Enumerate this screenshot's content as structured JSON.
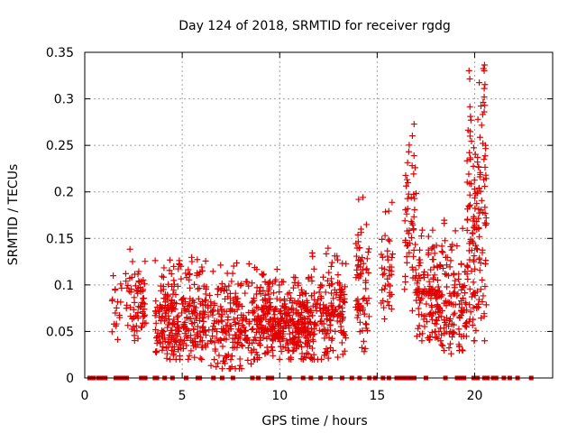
{
  "chart_data": {
    "type": "scatter",
    "title": "Day 124 of 2018, SRMTID for receiver rgdg",
    "xlabel": "GPS time / hours",
    "ylabel": "SRMTID / TECUs",
    "xlim": [
      0,
      24
    ],
    "ylim": [
      0,
      0.35
    ],
    "xticks": [
      0,
      5,
      10,
      15,
      20
    ],
    "yticks": [
      0,
      0.05,
      0.1,
      0.15,
      0.2,
      0.25,
      0.3,
      0.35
    ],
    "xtick_labels": [
      "0",
      "5",
      "10",
      "15",
      "20"
    ],
    "ytick_labels": [
      "0",
      "0.05",
      "0.1",
      "0.15",
      "0.2",
      "0.25",
      "0.3",
      "0.35"
    ],
    "grid": true,
    "marker": "+",
    "color": "#e00000",
    "series": [
      {
        "name": "SRMTID",
        "clusters": [
          {
            "x_range": [
              1.4,
              2.1
            ],
            "y_range": [
              0.04,
              0.14
            ],
            "n": 18
          },
          {
            "x_range": [
              2.1,
              3.3
            ],
            "y_range": [
              0.04,
              0.14
            ],
            "n": 70
          },
          {
            "x_range": [
              3.6,
              6.2
            ],
            "y_range": [
              0.02,
              0.13
            ],
            "n": 280
          },
          {
            "x_range": [
              6.2,
              8.6
            ],
            "y_range": [
              0.01,
              0.125
            ],
            "n": 200
          },
          {
            "x_range": [
              8.6,
              9.9
            ],
            "y_range": [
              0.02,
              0.12
            ],
            "n": 160
          },
          {
            "x_range": [
              9.9,
              11.6
            ],
            "y_range": [
              0.02,
              0.11
            ],
            "n": 220
          },
          {
            "x_range": [
              11.6,
              13.4
            ],
            "y_range": [
              0.02,
              0.14
            ],
            "n": 170
          },
          {
            "x_range": [
              13.9,
              14.6
            ],
            "y_range": [
              0.02,
              0.2
            ],
            "n": 70
          },
          {
            "x_range": [
              15.2,
              15.8
            ],
            "y_range": [
              0.06,
              0.19
            ],
            "n": 40
          },
          {
            "x_range": [
              16.4,
              17.0
            ],
            "y_range": [
              0.07,
              0.28
            ],
            "n": 55
          },
          {
            "x_range": [
              17.0,
              18.3
            ],
            "y_range": [
              0.04,
              0.16
            ],
            "n": 140
          },
          {
            "x_range": [
              18.3,
              19.6
            ],
            "y_range": [
              0.02,
              0.17
            ],
            "n": 120
          },
          {
            "x_range": [
              19.6,
              20.6
            ],
            "y_range": [
              0.04,
              0.345
            ],
            "n": 160
          }
        ],
        "zero_points_x": [
          0.25,
          0.45,
          0.7,
          0.9,
          1.05,
          1.6,
          1.8,
          1.95,
          2.15,
          2.9,
          3.1,
          3.6,
          3.7,
          4.1,
          4.5,
          5.2,
          5.8,
          5.9,
          6.6,
          7.05,
          7.6,
          8.6,
          8.9,
          9.4,
          9.6,
          10.5,
          11.2,
          11.6,
          12.1,
          12.6,
          13.2,
          13.7,
          14.1,
          14.6,
          14.9,
          15.3,
          15.6,
          16.0,
          16.1,
          16.3,
          16.5,
          16.7,
          16.9,
          17.5,
          18.5,
          19.1,
          19.2,
          19.35,
          19.45,
          19.95,
          20.15,
          20.5,
          20.65,
          20.95,
          21.1,
          21.5,
          21.8,
          22.2,
          22.9
        ]
      }
    ]
  }
}
